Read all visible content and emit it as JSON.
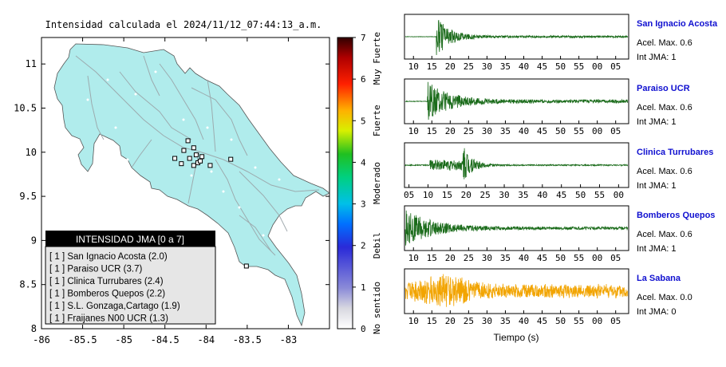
{
  "map": {
    "title": "Intensidad calculada el 2024/11/12_07:44:13_a.m.",
    "xlim": [
      -86,
      -82.5
    ],
    "ylim": [
      8,
      11.3
    ],
    "xticks": [
      "-86",
      "-85.5",
      "-85",
      "-84.5",
      "-84",
      "-83.5",
      "-83"
    ],
    "xtick_values": [
      -86,
      -85.5,
      -85,
      -84.5,
      -84,
      -83.5,
      -83
    ],
    "yticks": [
      "8",
      "8.5",
      "9",
      "9.5",
      "10",
      "10.5",
      "11"
    ],
    "ytick_values": [
      8,
      8.5,
      9,
      9.5,
      10,
      10.5,
      11
    ],
    "land_color": "#b0ecec",
    "stations_square": [
      {
        "lon": -84.22,
        "lat": 10.13
      },
      {
        "lon": -84.15,
        "lat": 10.05
      },
      {
        "lon": -84.27,
        "lat": 10.02
      },
      {
        "lon": -84.12,
        "lat": 9.97
      },
      {
        "lon": -84.05,
        "lat": 9.95
      },
      {
        "lon": -84.2,
        "lat": 9.93
      },
      {
        "lon": -84.38,
        "lat": 9.93
      },
      {
        "lon": -83.7,
        "lat": 9.92
      },
      {
        "lon": -84.1,
        "lat": 9.88
      },
      {
        "lon": -84.15,
        "lat": 9.85
      },
      {
        "lon": -84.3,
        "lat": 9.87
      },
      {
        "lon": -83.95,
        "lat": 9.85
      },
      {
        "lon": -84.07,
        "lat": 9.9
      },
      {
        "lon": -83.51,
        "lat": 8.71
      }
    ]
  },
  "legend": {
    "title": "INTENSIDAD JMA [0 a 7]",
    "items": [
      "[ 1 ]  San Ignacio Acosta (2.0)",
      "[ 1 ]  Paraiso UCR (3.7)",
      "[ 1 ]  Clinica Turrubares (2.4)",
      "[ 1 ]  Bomberos Quepos (2.2)",
      "[ 1 ]  S.L. Gonzaga,Cartago (1.9)",
      "[ 1 ]  Fraijanes N00 UCR (1.3)"
    ]
  },
  "colorbar": {
    "ticks": [
      "0",
      "1",
      "2",
      "3",
      "4",
      "5",
      "6",
      "7"
    ],
    "labels": [
      {
        "text": "No sentido",
        "value": 0.5
      },
      {
        "text": "Debil",
        "value": 2
      },
      {
        "text": "Moderado",
        "value": 3.5
      },
      {
        "text": "Fuerte",
        "value": 5
      },
      {
        "text": "Muy Fuerte",
        "value": 6.5
      }
    ]
  },
  "chart_data": [
    {
      "type": "line",
      "xlabel": "Tiempo (s)",
      "series": [
        {
          "name": "San Ignacio Acosta",
          "acel": "Acel. Max. 0.6",
          "jma": "Int JMA: 1",
          "color": "#1a6b1a",
          "onset": 0.14,
          "amp": 0.95,
          "decay": 0.06,
          "noise": 0.05,
          "ticks": [
            "10",
            "15",
            "20",
            "25",
            "30",
            "35",
            "40",
            "45",
            "50",
            "55",
            "00",
            "05"
          ],
          "tick_pos": [
            0.04,
            0.122,
            0.204,
            0.286,
            0.368,
            0.45,
            0.532,
            0.614,
            0.696,
            0.778,
            0.86,
            0.942
          ]
        },
        {
          "name": "Paraiso UCR",
          "acel": "Acel. Max. 0.6",
          "jma": "Int JMA: 1",
          "color": "#1a6b1a",
          "onset": 0.1,
          "amp": 0.9,
          "decay": 0.1,
          "noise": 0.08,
          "ticks": [
            "10",
            "15",
            "20",
            "25",
            "30",
            "35",
            "40",
            "45",
            "50",
            "55",
            "00",
            "05"
          ],
          "tick_pos": [
            0.04,
            0.122,
            0.204,
            0.286,
            0.368,
            0.45,
            0.532,
            0.614,
            0.696,
            0.778,
            0.86,
            0.942
          ]
        },
        {
          "name": "Clinica Turrubares",
          "acel": "Acel. Max. 0.6",
          "jma": "Int JMA: 1",
          "color": "#1a6b1a",
          "onset": 0.26,
          "amp": 0.95,
          "decay": 0.04,
          "noise": 0.03,
          "pre": 0.15,
          "ticks": [
            "05",
            "10",
            "15",
            "20",
            "25",
            "30",
            "35",
            "40",
            "45",
            "50",
            "55",
            "00"
          ],
          "tick_pos": [
            0.02,
            0.105,
            0.19,
            0.275,
            0.36,
            0.445,
            0.53,
            0.615,
            0.7,
            0.785,
            0.87,
            0.955
          ]
        },
        {
          "name": "Bomberos Quepos",
          "acel": "Acel. Max. 0.6",
          "jma": "Int JMA: 1",
          "color": "#1a6b1a",
          "onset": 0.0,
          "amp": 0.85,
          "decay": 0.12,
          "noise": 0.07,
          "ticks": [
            "10",
            "15",
            "20",
            "25",
            "30",
            "35",
            "40",
            "45",
            "50",
            "55",
            "00",
            "05"
          ],
          "tick_pos": [
            0.04,
            0.122,
            0.204,
            0.286,
            0.368,
            0.45,
            0.532,
            0.614,
            0.696,
            0.778,
            0.86,
            0.942
          ]
        },
        {
          "name": "La Sabana",
          "acel": "Acel. Max. 0.0",
          "jma": "Int JMA: 0",
          "color": "#f2a400",
          "onset": 0.0,
          "amp": 0.55,
          "decay": 0.9,
          "noise": 0.45,
          "ticks": [
            "10",
            "15",
            "20",
            "25",
            "30",
            "35",
            "40",
            "45",
            "50",
            "55",
            "00",
            "05"
          ],
          "tick_pos": [
            0.04,
            0.122,
            0.204,
            0.286,
            0.368,
            0.45,
            0.532,
            0.614,
            0.696,
            0.778,
            0.86,
            0.942
          ]
        }
      ]
    }
  ]
}
